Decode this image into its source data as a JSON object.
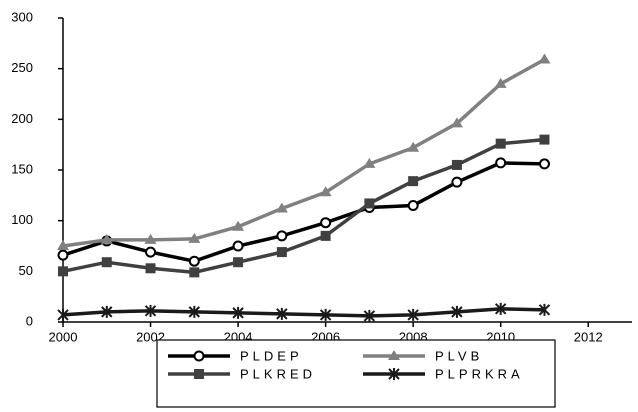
{
  "chart_data": {
    "type": "line",
    "x": [
      2000,
      2001,
      2002,
      2003,
      2004,
      2005,
      2006,
      2007,
      2008,
      2009,
      2010,
      2011
    ],
    "series": [
      {
        "name": "PLDEP",
        "color": "#000000",
        "marker": "circle",
        "values": [
          66,
          80,
          69,
          60,
          75,
          85,
          98,
          113,
          115,
          138,
          157,
          156
        ]
      },
      {
        "name": "PLVB",
        "color": "#808080",
        "marker": "triangle",
        "values": [
          75,
          81,
          81,
          82,
          94,
          112,
          128,
          156,
          172,
          196,
          235,
          259
        ]
      },
      {
        "name": "PLKRED",
        "color": "#404040",
        "marker": "square",
        "values": [
          50,
          59,
          53,
          49,
          59,
          69,
          85,
          117,
          139,
          155,
          176,
          180
        ]
      },
      {
        "name": "PLPRKRA",
        "color": "#1a1a1a",
        "marker": "star",
        "values": [
          7,
          10,
          11,
          10,
          9,
          8,
          7,
          6,
          7,
          10,
          13,
          12
        ]
      }
    ],
    "xlim": [
      2000,
      2013
    ],
    "xticks": [
      2000,
      2002,
      2004,
      2006,
      2008,
      2010,
      2012
    ],
    "ylim": [
      0,
      300
    ],
    "yticks": [
      0,
      50,
      100,
      150,
      200,
      250,
      300
    ],
    "grid": false,
    "legend": "bottom"
  }
}
